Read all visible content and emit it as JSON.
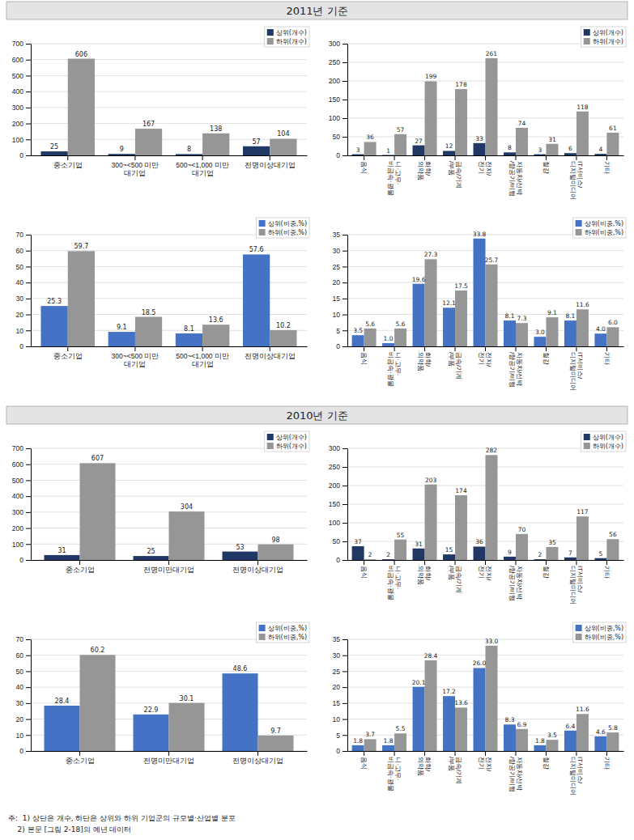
{
  "chart_data": [
    {
      "type": "bar",
      "title": "2011년 기준",
      "categories": [
        "중소기업",
        "300~<500 미만\n대기업",
        "500~<1,000 미만\n대기업",
        "전명이상대기업"
      ],
      "series": [
        {
          "name": "상위(개수)",
          "color": "#1F3864",
          "values": [
            25,
            9,
            8,
            57
          ]
        },
        {
          "name": "하위(개수)",
          "color": "#969696",
          "values": [
            606,
            167,
            138,
            104
          ]
        }
      ],
      "ylim": [
        0,
        700
      ],
      "yticks": [
        0,
        100,
        200,
        300,
        400,
        500,
        600,
        700
      ],
      "grid": true,
      "legend": "upper right",
      "data_labels": true
    },
    {
      "type": "bar",
      "categories": [
        "음식",
        "니·고무·\n비금속·광물",
        "화학/\n의약품",
        "금속/기계\n/부품",
        "전자/\n전기",
        "자동차/선박\n/항공기/비행",
        "철강",
        "IT서비스/\n디지털미디어",
        "기타"
      ],
      "series": [
        {
          "name": "상위(개수)",
          "color": "#1F3864",
          "values": [
            3,
            1,
            27,
            12,
            33,
            8,
            3,
            6,
            4
          ]
        },
        {
          "name": "하위(개수)",
          "color": "#969696",
          "values": [
            36,
            57,
            199,
            178,
            261,
            74,
            31,
            118,
            61
          ]
        }
      ],
      "ylim": [
        0,
        300
      ],
      "yticks": [
        0,
        50,
        100,
        150,
        200,
        250,
        300
      ],
      "grid": true,
      "legend": "upper right",
      "data_labels": true
    },
    {
      "type": "bar",
      "categories": [
        "중소기업",
        "300~<500 미만\n대기업",
        "500~<1,000 미만\n대기업",
        "전명이상대기업"
      ],
      "series": [
        {
          "name": "상위(비중,%)",
          "color": "#4472C4",
          "values": [
            25.3,
            9.1,
            8.1,
            57.6
          ]
        },
        {
          "name": "하위(비중,%)",
          "color": "#969696",
          "values": [
            59.7,
            18.5,
            13.6,
            10.2
          ]
        }
      ],
      "ylim": [
        0,
        70
      ],
      "yticks": [
        0,
        10,
        20,
        30,
        40,
        50,
        60,
        70
      ],
      "grid": true,
      "legend": "upper right",
      "data_labels": true
    },
    {
      "type": "bar",
      "categories": [
        "음식",
        "니·고무·\n비금속·광물",
        "화학/\n의약품",
        "금속/기계\n/부품",
        "전자/\n전기",
        "자동차/선박\n/항공기/비행",
        "철강",
        "IT서비스/\n디지털미디어",
        "기타"
      ],
      "series": [
        {
          "name": "상위(비중,%)",
          "color": "#4472C4",
          "values": [
            3.5,
            1.0,
            19.6,
            12.1,
            33.8,
            8.1,
            3.0,
            8.1,
            4.0
          ],
          "value_labels": [
            "3.5",
            "1.0",
            "19.6",
            "12.1",
            "33.8",
            "8.1",
            "3.0",
            "8.1",
            "4.0"
          ]
        },
        {
          "name": "하위(비중,%)",
          "color": "#969696",
          "values": [
            5.6,
            5.6,
            27.3,
            17.5,
            25.7,
            7.3,
            9.1,
            11.6,
            6.0
          ],
          "value_labels": [
            "5.6",
            "5.6",
            "27.3",
            "17.5",
            "25.7",
            "7.3",
            "9.1",
            "11.6",
            "6.0"
          ]
        }
      ],
      "ylim": [
        0,
        35
      ],
      "yticks": [
        0,
        5,
        10,
        15,
        20,
        25,
        30,
        35
      ],
      "grid": true,
      "legend": "upper right",
      "data_labels": true
    },
    {
      "type": "bar",
      "title": "2010년 기준",
      "categories": [
        "중소기업",
        "전명미만대기업",
        "전명이상대기업"
      ],
      "series": [
        {
          "name": "상위(개수)",
          "color": "#1F3864",
          "values": [
            31,
            25,
            53
          ]
        },
        {
          "name": "하위(개수)",
          "color": "#969696",
          "values": [
            607,
            304,
            98
          ]
        }
      ],
      "ylim": [
        0,
        700
      ],
      "yticks": [
        0,
        100,
        200,
        300,
        400,
        500,
        600,
        700
      ],
      "grid": true,
      "legend": "upper right",
      "data_labels": true
    },
    {
      "type": "bar",
      "categories": [
        "음식",
        "니·고무·\n비금속·광물",
        "화학/\n의약품",
        "금속/기계\n/부품",
        "전자/\n전기",
        "자동차/선박\n/항공기/비행",
        "철강",
        "IT서비스/\n디지털미디어",
        "기타"
      ],
      "series": [
        {
          "name": "상위(개수)",
          "color": "#1F3864",
          "values": [
            37,
            2,
            31,
            15,
            36,
            9,
            2,
            7,
            5
          ]
        },
        {
          "name": "하위(개수)",
          "color": "#969696",
          "values": [
            2,
            55,
            203,
            174,
            282,
            70,
            35,
            117,
            56
          ]
        }
      ],
      "ylim": [
        0,
        300
      ],
      "yticks": [
        0,
        50,
        100,
        150,
        200,
        250,
        300
      ],
      "grid": true,
      "legend": "upper right",
      "data_labels": true
    },
    {
      "type": "bar",
      "categories": [
        "중소기업",
        "전명미만대기업",
        "전명이상대기업"
      ],
      "series": [
        {
          "name": "상위(비중,%)",
          "color": "#4472C4",
          "values": [
            28.4,
            22.9,
            48.6
          ]
        },
        {
          "name": "하위(비중,%)",
          "color": "#969696",
          "values": [
            60.2,
            30.1,
            9.7
          ]
        }
      ],
      "ylim": [
        0,
        70
      ],
      "yticks": [
        0,
        10,
        20,
        30,
        40,
        50,
        60,
        70
      ],
      "grid": true,
      "legend": "upper right",
      "data_labels": true
    },
    {
      "type": "bar",
      "categories": [
        "음식",
        "니·고무·\n비금속·광물",
        "화학/\n의약품",
        "금속/기계\n/부품",
        "전자/\n전기",
        "자동차/선박\n/항공기/비행",
        "철강",
        "IT서비스/\n디지털미디어",
        "기타"
      ],
      "series": [
        {
          "name": "상위(비중,%)",
          "color": "#4472C4",
          "values": [
            1.8,
            1.8,
            20.1,
            17.2,
            26.0,
            8.3,
            1.8,
            6.4,
            4.6
          ],
          "value_labels": [
            "1.8",
            "1.8",
            "20.1",
            "17.2",
            "26.0",
            "8.3",
            "1.8",
            "6.4",
            "4.6"
          ]
        },
        {
          "name": "하위(비중,%)",
          "color": "#969696",
          "values": [
            3.7,
            5.5,
            28.4,
            13.6,
            33.0,
            6.9,
            3.5,
            11.6,
            5.8
          ],
          "value_labels": [
            "3.7",
            "5.5",
            "28.4",
            "13.6",
            "33.0",
            "6.9",
            "3.5",
            "11.6",
            "5.8"
          ]
        }
      ],
      "ylim": [
        0,
        35
      ],
      "yticks": [
        0,
        5,
        10,
        15,
        20,
        25,
        30,
        35
      ],
      "grid": true,
      "legend": "upper right",
      "data_labels": true,
      "annotations": [
        "주:  1) 상단은 개수, 하단은 상위와 하위 기업군의 규모별·산업별 분포",
        "    2) 본문 [그림 2-18]의 예년 데이터"
      ]
    }
  ]
}
